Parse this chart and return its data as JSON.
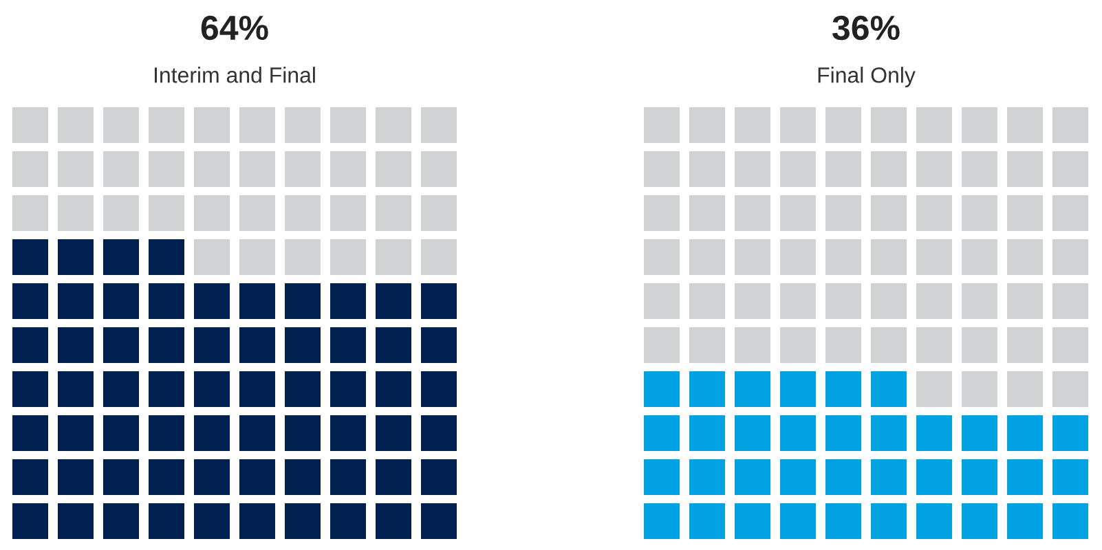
{
  "chart_data": [
    {
      "type": "other",
      "categories": [
        "Interim and Final"
      ],
      "values": [
        64
      ],
      "value_labels": [
        "64%"
      ],
      "color": "#002050"
    },
    {
      "type": "other",
      "categories": [
        "Final Only"
      ],
      "values": [
        36
      ],
      "value_labels": [
        "36%"
      ],
      "color": "#00a3e0"
    }
  ]
}
